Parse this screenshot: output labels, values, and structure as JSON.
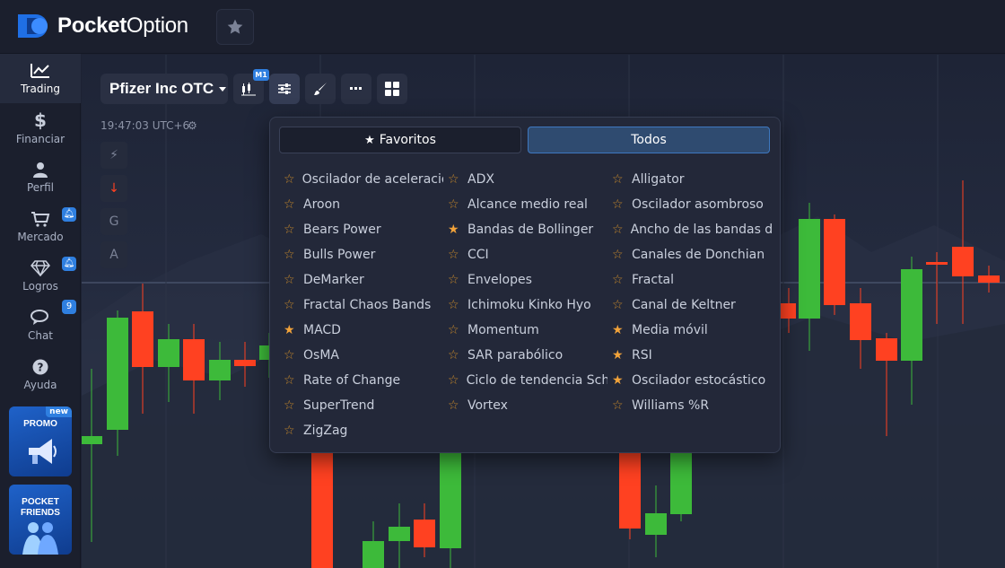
{
  "header": {
    "brand_bold": "Pocket",
    "brand_regular": "Option"
  },
  "sidebar": {
    "items": [
      {
        "label": "Trading",
        "icon": "chart-line-icon",
        "active": true
      },
      {
        "label": "Financiar",
        "icon": "dollar-icon"
      },
      {
        "label": "Perfil",
        "icon": "user-icon"
      },
      {
        "label": "Mercado",
        "icon": "cart-icon",
        "badge_icon": "bell-icon"
      },
      {
        "label": "Logros",
        "icon": "diamond-icon",
        "badge_icon": "bell-icon"
      },
      {
        "label": "Chat",
        "icon": "chat-icon",
        "badge": "9"
      },
      {
        "label": "Ayuda",
        "icon": "help-icon"
      }
    ],
    "promo": {
      "label": "PROMO",
      "badge": "new"
    },
    "friends": {
      "line1": "POCKET",
      "line2": "FRIENDS"
    }
  },
  "toolbar": {
    "asset": "Pfizer Inc OTC",
    "timeframe": "M1"
  },
  "chart_header": {
    "time": "19:47:03 UTC+6"
  },
  "mini_tools": [
    "⚡",
    "↓",
    "G",
    "A"
  ],
  "indicators": {
    "tabs": {
      "favorites": "Favoritos",
      "all": "Todos"
    },
    "active_tab": "Todos",
    "columns": [
      [
        {
          "name": "Oscilador de aceleración",
          "fav": false
        },
        {
          "name": "Aroon",
          "fav": false
        },
        {
          "name": "Bears Power",
          "fav": false
        },
        {
          "name": "Bulls Power",
          "fav": false
        },
        {
          "name": "DeMarker",
          "fav": false
        },
        {
          "name": "Fractal Chaos Bands",
          "fav": false
        },
        {
          "name": "MACD",
          "fav": true
        },
        {
          "name": "OsMA",
          "fav": false
        },
        {
          "name": "Rate of Change",
          "fav": false
        },
        {
          "name": "SuperTrend",
          "fav": false
        },
        {
          "name": "ZigZag",
          "fav": false
        }
      ],
      [
        {
          "name": "ADX",
          "fav": false
        },
        {
          "name": "Alcance medio real",
          "fav": false
        },
        {
          "name": "Bandas de Bollinger",
          "fav": true
        },
        {
          "name": "CCI",
          "fav": false
        },
        {
          "name": "Envelopes",
          "fav": false
        },
        {
          "name": "Ichimoku Kinko Hyo",
          "fav": false
        },
        {
          "name": "Momentum",
          "fav": false
        },
        {
          "name": "SAR parabólico",
          "fav": false
        },
        {
          "name": "Ciclo de tendencia Schaff",
          "fav": false
        },
        {
          "name": "Vortex",
          "fav": false
        }
      ],
      [
        {
          "name": "Alligator",
          "fav": false
        },
        {
          "name": "Oscilador asombroso",
          "fav": false
        },
        {
          "name": "Ancho de las bandas de Bollinger",
          "fav": false
        },
        {
          "name": "Canales de Donchian",
          "fav": false
        },
        {
          "name": "Fractal",
          "fav": false
        },
        {
          "name": "Canal de Keltner",
          "fav": false
        },
        {
          "name": "Media móvil",
          "fav": true
        },
        {
          "name": "RSI",
          "fav": true
        },
        {
          "name": "Oscilador estocástico",
          "fav": true
        },
        {
          "name": "Williams %R",
          "fav": false
        }
      ]
    ]
  },
  "colors": {
    "bull": "#3dba3a",
    "bear": "#ff4121",
    "accent": "#2f7fe0",
    "star_on": "#f2a33a"
  }
}
